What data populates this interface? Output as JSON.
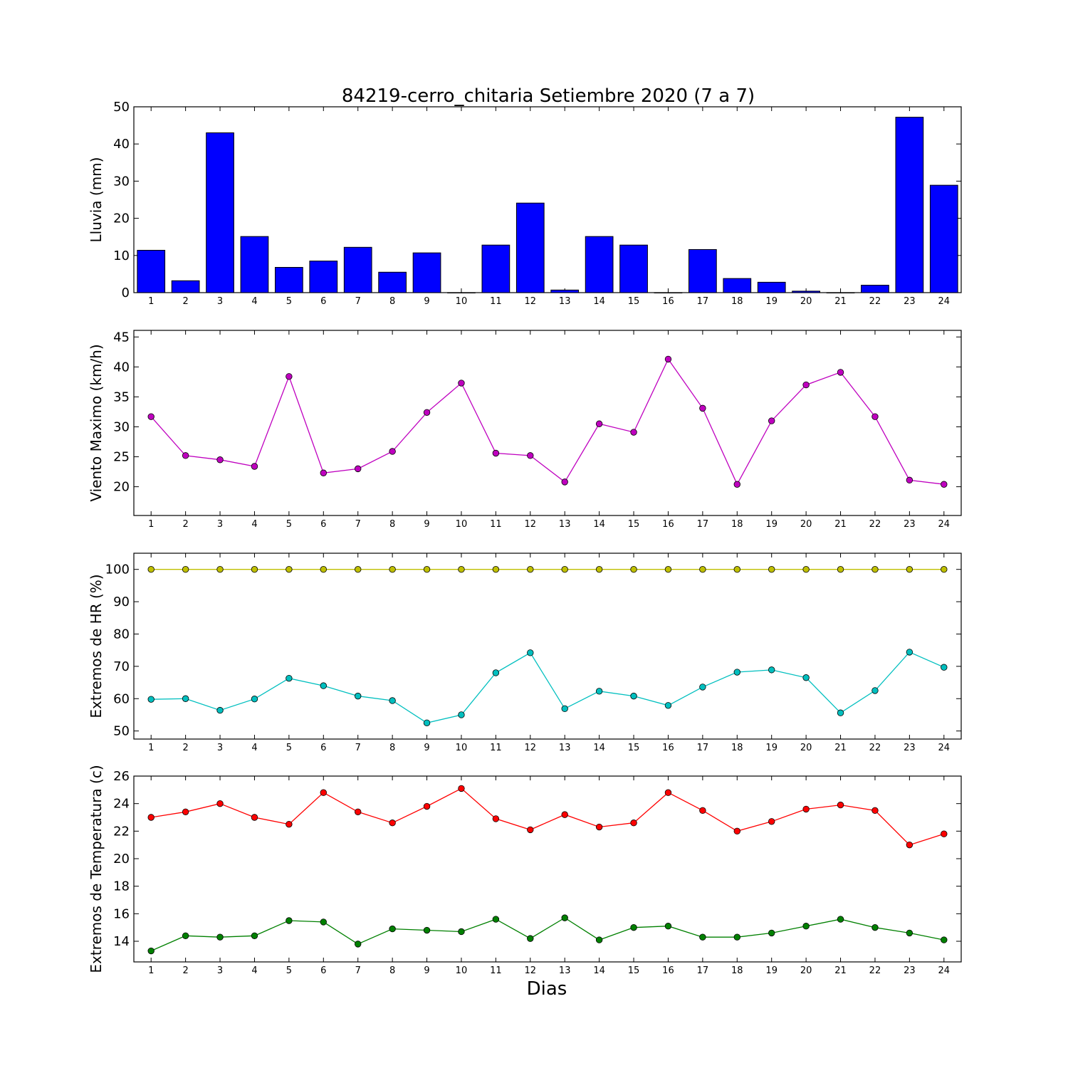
{
  "figure": {
    "title": "84219-cerro_chitaria Setiembre 2020  (7 a 7)",
    "xlabel": "Dias"
  },
  "chart_data": [
    {
      "type": "bar",
      "ylabel": "Lluvia (mm)",
      "categories": [
        "1",
        "2",
        "3",
        "4",
        "5",
        "6",
        "7",
        "8",
        "9",
        "10",
        "11",
        "12",
        "13",
        "14",
        "15",
        "16",
        "17",
        "18",
        "19",
        "20",
        "21",
        "22",
        "23",
        "24"
      ],
      "series": [
        {
          "color": "#0000ff",
          "values": [
            11.4,
            3.2,
            43.0,
            15.1,
            6.8,
            8.5,
            12.2,
            5.5,
            10.7,
            0.0,
            12.8,
            24.1,
            0.7,
            15.1,
            12.8,
            0.0,
            11.6,
            3.8,
            2.8,
            0.4,
            0.0,
            2.0,
            47.2,
            28.9
          ]
        }
      ],
      "ylim": [
        0,
        50
      ],
      "yticks": [
        0,
        10,
        20,
        30,
        40,
        50
      ]
    },
    {
      "type": "line",
      "ylabel": "Viento Maximo (km/h)",
      "categories": [
        "1",
        "2",
        "3",
        "4",
        "5",
        "6",
        "7",
        "8",
        "9",
        "10",
        "11",
        "12",
        "13",
        "14",
        "15",
        "16",
        "17",
        "18",
        "19",
        "20",
        "21",
        "22",
        "23",
        "24"
      ],
      "series": [
        {
          "color": "#bf00bf",
          "values": [
            31.7,
            25.2,
            24.5,
            23.4,
            38.4,
            22.3,
            23.0,
            25.9,
            32.4,
            37.3,
            25.6,
            25.2,
            20.8,
            30.5,
            29.1,
            41.3,
            33.1,
            20.4,
            31.0,
            37.0,
            39.1,
            31.7,
            21.1,
            20.4
          ]
        }
      ],
      "ylim": [
        15.2,
        46.1
      ],
      "yticks": [
        20,
        25,
        30,
        35,
        40,
        45
      ]
    },
    {
      "type": "line",
      "ylabel": "Extremos de HR (%)",
      "categories": [
        "1",
        "2",
        "3",
        "4",
        "5",
        "6",
        "7",
        "8",
        "9",
        "10",
        "11",
        "12",
        "13",
        "14",
        "15",
        "16",
        "17",
        "18",
        "19",
        "20",
        "21",
        "22",
        "23",
        "24"
      ],
      "series": [
        {
          "color": "#bfbf00",
          "values": [
            100,
            100,
            100,
            100,
            100,
            100,
            100,
            100,
            100,
            100,
            100,
            100,
            100,
            100,
            100,
            100,
            100,
            100,
            100,
            100,
            100,
            100,
            100,
            100
          ]
        },
        {
          "color": "#00bfbf",
          "values": [
            59.8,
            60.0,
            56.4,
            59.9,
            66.3,
            64.0,
            60.8,
            59.4,
            52.5,
            55.0,
            68.0,
            74.2,
            56.9,
            62.3,
            60.8,
            57.9,
            63.6,
            68.2,
            68.9,
            66.5,
            55.6,
            62.5,
            74.4,
            69.7
          ]
        }
      ],
      "ylim": [
        47.5,
        105
      ],
      "yticks": [
        50,
        60,
        70,
        80,
        90,
        100
      ]
    },
    {
      "type": "line",
      "ylabel": "Extremos de Temperatura (c)",
      "categories": [
        "1",
        "2",
        "3",
        "4",
        "5",
        "6",
        "7",
        "8",
        "9",
        "10",
        "11",
        "12",
        "13",
        "14",
        "15",
        "16",
        "17",
        "18",
        "19",
        "20",
        "21",
        "22",
        "23",
        "24"
      ],
      "series": [
        {
          "color": "#ff0000",
          "values": [
            23.0,
            23.4,
            24.0,
            23.0,
            22.5,
            24.8,
            23.4,
            22.6,
            23.8,
            25.1,
            22.9,
            22.1,
            23.2,
            22.3,
            22.6,
            24.8,
            23.5,
            22.0,
            22.7,
            23.6,
            23.9,
            23.5,
            21.0,
            21.8
          ]
        },
        {
          "color": "#008000",
          "values": [
            13.3,
            14.4,
            14.3,
            14.4,
            15.5,
            15.4,
            13.8,
            14.9,
            14.8,
            14.7,
            15.6,
            14.2,
            15.7,
            14.1,
            15.0,
            15.1,
            14.3,
            14.3,
            14.6,
            15.1,
            15.6,
            15.0,
            14.6,
            14.1
          ]
        }
      ],
      "ylim": [
        12.5,
        26
      ],
      "yticks": [
        14,
        16,
        18,
        20,
        22,
        24,
        26
      ]
    }
  ]
}
